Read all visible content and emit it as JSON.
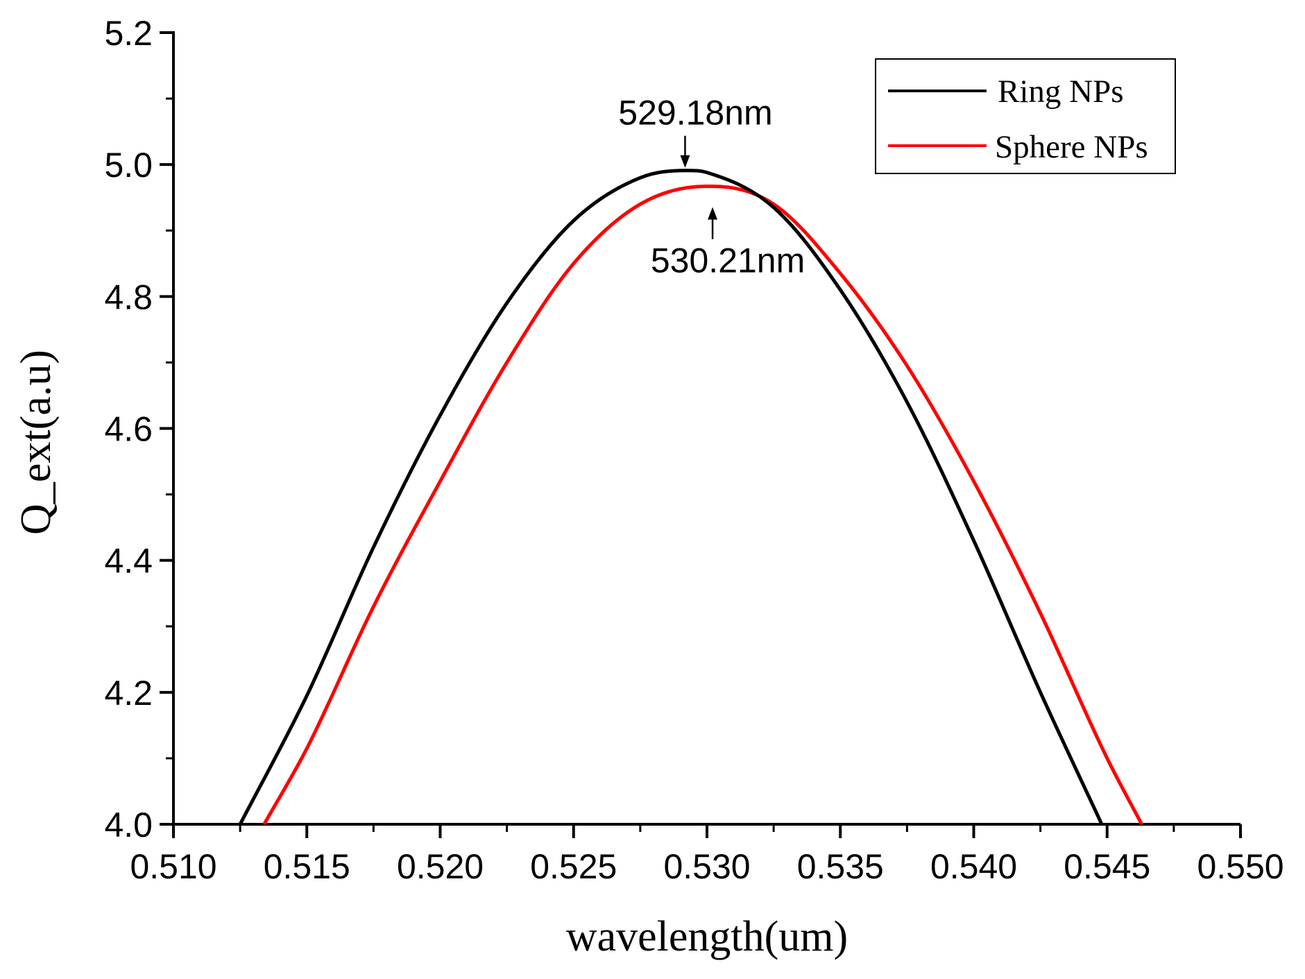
{
  "chart_data": {
    "type": "line",
    "title": "",
    "xlabel": "wavelength(um)",
    "ylabel": "Q_ext(a.u)",
    "xlim": [
      0.51,
      0.55
    ],
    "ylim": [
      4.0,
      5.2
    ],
    "xticks": [
      "0.510",
      "0.515",
      "0.520",
      "0.525",
      "0.530",
      "0.535",
      "0.540",
      "0.545",
      "0.550"
    ],
    "yticks": [
      "4.0",
      "4.2",
      "4.4",
      "4.6",
      "4.8",
      "5.0",
      "5.2"
    ],
    "grid": false,
    "legend_position": "top-right",
    "series": [
      {
        "name": "Ring NPs",
        "color": "#000000",
        "x": [
          0.5125,
          0.515,
          0.5175,
          0.52,
          0.5225,
          0.525,
          0.5275,
          0.5292,
          0.53,
          0.5325,
          0.535,
          0.5375,
          0.54,
          0.5425,
          0.5448
        ],
        "y": [
          4.0,
          4.195,
          4.42,
          4.62,
          4.79,
          4.915,
          4.98,
          4.991,
          4.988,
          4.935,
          4.81,
          4.64,
          4.43,
          4.2,
          4.0
        ]
      },
      {
        "name": "Sphere NPs",
        "color": "#ff0000",
        "x": [
          0.5134,
          0.515,
          0.5175,
          0.52,
          0.5225,
          0.525,
          0.5275,
          0.53,
          0.5302,
          0.5325,
          0.535,
          0.5375,
          0.54,
          0.5425,
          0.545,
          0.5463
        ],
        "y": [
          4.0,
          4.115,
          4.33,
          4.52,
          4.7,
          4.85,
          4.94,
          4.967,
          4.967,
          4.94,
          4.835,
          4.695,
          4.52,
          4.32,
          4.1,
          4.0
        ]
      }
    ],
    "annotations": [
      {
        "text": "529.18nm",
        "x": 0.52918,
        "y": 4.991,
        "arrow": "down"
      },
      {
        "text": "530.21nm",
        "x": 0.53021,
        "y": 4.967,
        "arrow": "up"
      }
    ]
  }
}
